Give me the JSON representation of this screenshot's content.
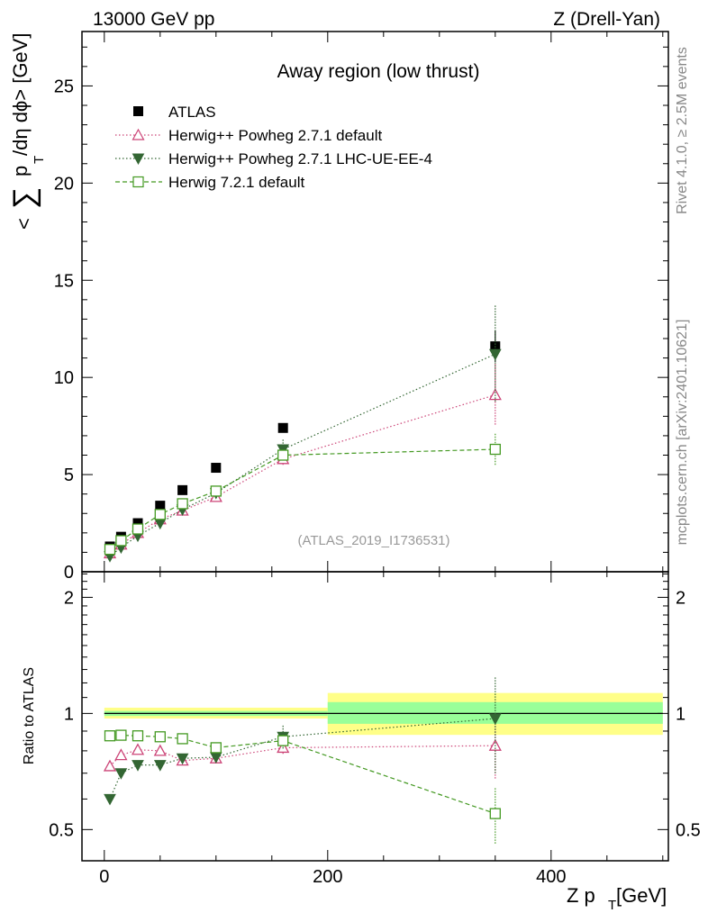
{
  "header": {
    "left": "13000 GeV pp",
    "right": "Z (Drell-Yan)"
  },
  "side": {
    "rivet": "Rivet 4.1.0, ≥ 2.5M events",
    "mcplots": "mcplots.cern.ch [arXiv:2401.10621]"
  },
  "colors": {
    "atlas": "#000000",
    "powheg_default": "#cc4477",
    "powheg_lhc": "#336633",
    "herwig721": "#449922",
    "band_inner": "#99ff99",
    "band_outer": "#ffff88"
  },
  "chart_data": [
    {
      "type": "scatter",
      "title": "Away region (low thrust)",
      "watermark": "(ATLAS_2019_I1736531)",
      "ylabel_parts": {
        "a": "<",
        "sum": "∑",
        "p": "p",
        "t": "T",
        "rest": "/dη dϕ> [GeV]"
      },
      "xlim": [
        -20,
        505
      ],
      "ylim": [
        0,
        27.8
      ],
      "yticks": [
        0,
        5,
        10,
        15,
        20,
        25
      ],
      "ytick_labels": [
        "0",
        "5",
        "10",
        "15",
        "20",
        "25"
      ],
      "series": [
        {
          "name": "ATLAS",
          "key": "atlas",
          "marker": "square-filled",
          "line": "none",
          "x": [
            5,
            15,
            30,
            50,
            70,
            100,
            160,
            350
          ],
          "y": [
            1.3,
            1.8,
            2.5,
            3.4,
            4.2,
            5.35,
            7.4,
            11.6
          ],
          "yerr": [
            0.03,
            0.04,
            0.05,
            0.06,
            0.08,
            0.1,
            0.15,
            0.8
          ]
        },
        {
          "name": "Herwig++ Powheg 2.7.1 default",
          "key": "powheg_default",
          "marker": "triangle-open",
          "line": "dotted",
          "x": [
            5,
            15,
            30,
            50,
            70,
            100,
            160,
            350
          ],
          "y": [
            0.95,
            1.4,
            2.0,
            2.7,
            3.15,
            3.85,
            5.8,
            9.1
          ],
          "yerr": [
            0.05,
            0.06,
            0.08,
            0.1,
            0.12,
            0.15,
            0.3,
            1.6
          ]
        },
        {
          "name": "Herwig++ Powheg 2.7.1 LHC-UE-EE-4",
          "key": "powheg_lhc",
          "marker": "triangle-down-filled",
          "line": "dotted",
          "x": [
            5,
            15,
            30,
            50,
            70,
            100,
            160,
            350
          ],
          "y": [
            0.8,
            1.25,
            1.85,
            2.5,
            3.2,
            4.05,
            6.3,
            11.2
          ],
          "yerr": [
            0.05,
            0.06,
            0.08,
            0.1,
            0.12,
            0.15,
            0.5,
            2.5
          ]
        },
        {
          "name": "Herwig 7.2.1 default",
          "key": "herwig721",
          "marker": "square-open",
          "line": "dashed",
          "x": [
            5,
            15,
            30,
            50,
            70,
            100,
            160,
            350
          ],
          "y": [
            1.15,
            1.6,
            2.2,
            2.95,
            3.5,
            4.15,
            6.0,
            6.3
          ],
          "yerr": [
            0.04,
            0.05,
            0.06,
            0.08,
            0.1,
            0.12,
            0.2,
            0.8
          ]
        }
      ]
    },
    {
      "type": "scatter",
      "ylabel": "Ratio to ATLAS",
      "xlabel_parts": {
        "main": "Z p",
        "sub": "T",
        "unit": " [GeV]"
      },
      "xlim": [
        -20,
        505
      ],
      "ylim": [
        0.415,
        2.33
      ],
      "ylog": true,
      "yticks": [
        0.5,
        1,
        2
      ],
      "ytick_labels": [
        "0.5",
        "1",
        "2"
      ],
      "xticks": [
        0,
        200,
        400
      ],
      "xtick_labels": [
        "0",
        "200",
        "400"
      ],
      "bands": [
        {
          "x0": 0,
          "x1": 200,
          "inner": [
            0.985,
            1.015
          ],
          "outer": [
            0.97,
            1.035
          ]
        },
        {
          "x0": 200,
          "x1": 500,
          "inner": [
            0.94,
            1.07
          ],
          "outer": [
            0.88,
            1.13
          ]
        }
      ],
      "series": [
        {
          "name": "Herwig++ Powheg 2.7.1 default",
          "key": "powheg_default",
          "marker": "triangle-open",
          "line": "dotted",
          "x": [
            5,
            15,
            30,
            50,
            70,
            100,
            160,
            350
          ],
          "y": [
            0.73,
            0.78,
            0.805,
            0.8,
            0.755,
            0.765,
            0.815,
            0.825
          ],
          "yerr": [
            0.01,
            0.01,
            0.01,
            0.01,
            0.01,
            0.01,
            0.03,
            0.15
          ]
        },
        {
          "name": "Herwig++ Powheg 2.7.1 LHC-UE-EE-4",
          "key": "powheg_lhc",
          "marker": "triangle-down-filled",
          "line": "dotted",
          "x": [
            5,
            15,
            30,
            50,
            70,
            100,
            160,
            350
          ],
          "y": [
            0.6,
            0.7,
            0.735,
            0.735,
            0.765,
            0.77,
            0.87,
            0.97
          ],
          "yerr": [
            0.01,
            0.01,
            0.01,
            0.01,
            0.01,
            0.01,
            0.06,
            0.27
          ]
        },
        {
          "name": "Herwig 7.2.1 default",
          "key": "herwig721",
          "marker": "square-open",
          "line": "dashed",
          "x": [
            5,
            15,
            30,
            50,
            70,
            100,
            160,
            350
          ],
          "y": [
            0.875,
            0.878,
            0.875,
            0.87,
            0.86,
            0.815,
            0.85,
            0.55
          ],
          "yerr": [
            0.01,
            0.01,
            0.01,
            0.01,
            0.01,
            0.01,
            0.03,
            0.09
          ]
        }
      ]
    }
  ]
}
